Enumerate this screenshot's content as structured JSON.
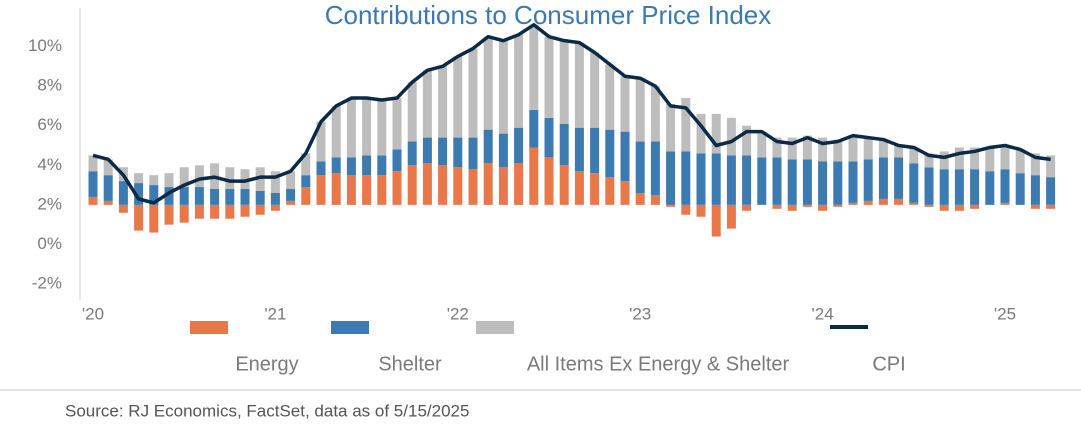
{
  "chart_data": {
    "type": "stacked_bar_line",
    "title": "Contributions to Consumer Price Index",
    "source": "Source: RJ Economics, FactSet, data as of 5/15/2025",
    "categories": [
      "'20",
      null,
      null,
      null,
      null,
      null,
      null,
      null,
      null,
      null,
      null,
      null,
      "'21",
      null,
      null,
      null,
      null,
      null,
      null,
      null,
      null,
      null,
      null,
      null,
      "'22",
      null,
      null,
      null,
      null,
      null,
      null,
      null,
      null,
      null,
      null,
      null,
      "'23",
      null,
      null,
      null,
      null,
      null,
      null,
      null,
      null,
      null,
      null,
      null,
      "'24",
      null,
      null,
      null,
      null,
      null,
      null,
      null,
      null,
      null,
      null,
      null,
      "'25",
      null,
      null,
      null
    ],
    "baseline": 2,
    "series": [
      {
        "name": "Energy",
        "color": "#e8784a",
        "values": [
          0.4,
          0.2,
          -0.4,
          -1.3,
          -1.4,
          -1.0,
          -0.9,
          -0.7,
          -0.7,
          -0.7,
          -0.6,
          -0.5,
          -0.3,
          0.2,
          0.9,
          1.5,
          1.6,
          1.5,
          1.5,
          1.5,
          1.7,
          2.0,
          2.1,
          2.0,
          1.9,
          1.8,
          2.1,
          1.9,
          2.1,
          2.9,
          2.4,
          2.0,
          1.7,
          1.6,
          1.4,
          1.2,
          0.6,
          0.5,
          -0.1,
          -0.5,
          -0.6,
          -1.6,
          -1.2,
          -0.3,
          0.0,
          -0.2,
          -0.3,
          -0.1,
          -0.3,
          -0.1,
          0.1,
          0.2,
          0.3,
          0.3,
          0.1,
          -0.1,
          -0.3,
          -0.3,
          -0.2,
          0.0,
          0.1,
          0.0,
          -0.2,
          -0.2
        ]
      },
      {
        "name": "Shelter",
        "color": "#3d7ab0",
        "values": [
          1.3,
          1.3,
          1.2,
          1.1,
          1.0,
          0.9,
          0.9,
          0.9,
          0.8,
          0.8,
          0.8,
          0.7,
          0.6,
          0.6,
          0.6,
          0.7,
          0.8,
          0.9,
          1.0,
          1.0,
          1.1,
          1.2,
          1.3,
          1.4,
          1.5,
          1.6,
          1.7,
          1.7,
          1.8,
          1.9,
          2.0,
          2.1,
          2.2,
          2.3,
          2.4,
          2.5,
          2.6,
          2.7,
          2.7,
          2.7,
          2.6,
          2.6,
          2.5,
          2.5,
          2.4,
          2.4,
          2.3,
          2.3,
          2.2,
          2.2,
          2.1,
          2.1,
          2.1,
          2.1,
          2.0,
          1.9,
          1.8,
          1.8,
          1.8,
          1.7,
          1.7,
          1.6,
          1.5,
          1.4
        ]
      },
      {
        "name": "All Items Ex Energy & Shelter",
        "color": "#bdbdbd",
        "values": [
          0.8,
          0.8,
          0.7,
          0.5,
          0.5,
          0.7,
          1.0,
          1.1,
          1.3,
          1.1,
          1.0,
          1.2,
          1.1,
          0.9,
          1.1,
          2.0,
          2.6,
          3.0,
          2.9,
          2.8,
          2.6,
          3.0,
          3.4,
          3.6,
          4.1,
          4.5,
          4.7,
          4.7,
          4.7,
          4.3,
          4.1,
          4.2,
          4.3,
          3.8,
          3.3,
          2.8,
          3.2,
          2.8,
          2.4,
          2.7,
          2.0,
          2.0,
          1.9,
          1.5,
          1.3,
          1.0,
          1.1,
          1.2,
          1.2,
          1.1,
          1.3,
          1.1,
          0.9,
          0.6,
          0.8,
          0.7,
          0.9,
          1.1,
          1.1,
          1.2,
          1.2,
          1.2,
          1.1,
          1.1
        ]
      },
      {
        "name": "CPI",
        "color": "#0b2a45",
        "kind": "line",
        "values": [
          4.5,
          4.3,
          3.5,
          2.3,
          2.1,
          2.6,
          3.0,
          3.3,
          3.4,
          3.2,
          3.2,
          3.4,
          3.4,
          3.7,
          4.6,
          6.2,
          7.0,
          7.4,
          7.4,
          7.3,
          7.4,
          8.2,
          8.8,
          9.0,
          9.5,
          9.9,
          10.5,
          10.3,
          10.6,
          11.1,
          10.5,
          10.3,
          10.2,
          9.7,
          9.1,
          8.5,
          8.4,
          8.0,
          7.0,
          6.9,
          6.0,
          5.0,
          5.2,
          5.7,
          5.7,
          5.2,
          5.1,
          5.4,
          5.1,
          5.2,
          5.5,
          5.4,
          5.3,
          5.0,
          4.9,
          4.5,
          4.4,
          4.6,
          4.7,
          4.9,
          5.0,
          4.8,
          4.4,
          4.3
        ]
      }
    ],
    "ylim": [
      -2,
      12
    ],
    "yticks": [
      {
        "value": -2,
        "label": "-2%"
      },
      {
        "value": 0,
        "label": "0%"
      },
      {
        "value": 2,
        "label": "2%"
      },
      {
        "value": 4,
        "label": "4%"
      },
      {
        "value": 6,
        "label": "6%"
      },
      {
        "value": 8,
        "label": "8%"
      },
      {
        "value": 10,
        "label": "10%"
      }
    ]
  }
}
